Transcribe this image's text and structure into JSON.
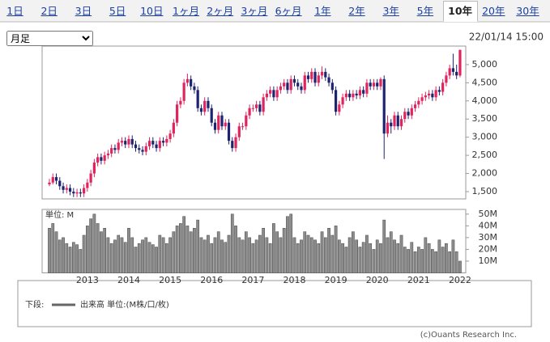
{
  "tabs": [
    "1日",
    "2日",
    "3日",
    "5日",
    "10日",
    "1ヶ月",
    "2ヶ月",
    "3ヶ月",
    "6ヶ月",
    "1年",
    "2年",
    "3年",
    "5年",
    "10年",
    "20年",
    "30年"
  ],
  "active_tab": 13,
  "interval_select": "月足",
  "timestamp": "22/01/14 15:00",
  "chart_data": [
    {
      "type": "candlestick",
      "up_color": "#e0245e",
      "down_color": "#1c2470",
      "grid": false,
      "open": [
        1700,
        1750,
        1900,
        1800,
        1650,
        1550,
        1600,
        1500,
        1450,
        1480,
        1450,
        1600,
        1750,
        2000,
        2300,
        2450,
        2350,
        2500,
        2550,
        2700,
        2650,
        2850,
        2900,
        2800,
        2950,
        2800,
        2700,
        2650,
        2600,
        2750,
        2900,
        2800,
        2700,
        2900,
        2850,
        2950,
        3100,
        3400,
        3900,
        4000,
        4500,
        4600,
        4400,
        4300,
        3800,
        3700,
        4000,
        3800,
        3400,
        3200,
        3600,
        3300,
        3400,
        2900,
        2700,
        3000,
        3300,
        3300,
        3600,
        3800,
        3800,
        3900,
        3700,
        4100,
        4200,
        4300,
        4100,
        4300,
        4400,
        4500,
        4300,
        4600,
        4500,
        4400,
        4300,
        4700,
        4600,
        4800,
        4500,
        4700,
        4800,
        4650,
        4500,
        4300,
        3700,
        3900,
        4100,
        4200,
        4100,
        4200,
        4150,
        4300,
        4200,
        4500,
        4400,
        4500,
        4400,
        4600,
        3100,
        3400,
        3300,
        3600,
        3300,
        3500,
        3700,
        3600,
        3800,
        3900,
        4000,
        4100,
        4150,
        4200,
        4100,
        4300,
        4250,
        4500,
        4700,
        4900,
        4800,
        4700
      ],
      "high": [
        1850,
        2000,
        2000,
        1900,
        1750,
        1700,
        1700,
        1600,
        1580,
        1580,
        1700,
        1850,
        2100,
        2400,
        2550,
        2550,
        2600,
        2650,
        2800,
        2800,
        2950,
        3000,
        3000,
        3050,
        3050,
        2900,
        2800,
        2750,
        2850,
        3000,
        3000,
        2900,
        3000,
        3000,
        3050,
        3200,
        3500,
        4000,
        4100,
        4600,
        4750,
        4700,
        4500,
        4400,
        3900,
        4100,
        4100,
        3900,
        3500,
        3700,
        3700,
        3500,
        3500,
        3000,
        3100,
        3400,
        3400,
        3700,
        3900,
        3900,
        4000,
        4000,
        4200,
        4300,
        4400,
        4400,
        4400,
        4500,
        4600,
        4600,
        4700,
        4700,
        4600,
        4500,
        4800,
        4800,
        4900,
        4900,
        4800,
        4950,
        4900,
        4750,
        4600,
        4400,
        4000,
        4200,
        4300,
        4300,
        4300,
        4300,
        4400,
        4400,
        4600,
        4600,
        4600,
        4600,
        4650,
        4700,
        3600,
        3500,
        3700,
        3700,
        3600,
        3800,
        3800,
        3900,
        4000,
        4100,
        4200,
        4250,
        4300,
        4300,
        4400,
        4400,
        4600,
        4800,
        5000,
        5300,
        5000,
        5420
      ],
      "low": [
        1650,
        1700,
        1700,
        1550,
        1450,
        1450,
        1400,
        1350,
        1350,
        1350,
        1350,
        1500,
        1650,
        1900,
        2200,
        2250,
        2250,
        2400,
        2450,
        2550,
        2550,
        2750,
        2700,
        2700,
        2700,
        2600,
        2550,
        2500,
        2500,
        2650,
        2700,
        2600,
        2600,
        2750,
        2750,
        2850,
        3000,
        3300,
        3800,
        3900,
        4400,
        4300,
        4200,
        3700,
        3600,
        3600,
        3700,
        3300,
        3100,
        3100,
        3200,
        3200,
        2800,
        2600,
        2600,
        2900,
        3200,
        3200,
        3500,
        3700,
        3700,
        3600,
        3600,
        4000,
        4100,
        4000,
        4000,
        4200,
        4300,
        4200,
        4200,
        4400,
        4300,
        4200,
        4200,
        4500,
        4500,
        4400,
        4400,
        4600,
        4550,
        4400,
        4200,
        3600,
        3600,
        3800,
        4000,
        4000,
        4000,
        4050,
        4050,
        4100,
        4100,
        4300,
        4300,
        4300,
        4300,
        2400,
        3000,
        3100,
        3200,
        3200,
        3200,
        3400,
        3500,
        3500,
        3700,
        3800,
        3900,
        4000,
        4050,
        4000,
        4000,
        4150,
        4150,
        4400,
        4600,
        4700,
        4600,
        4650
      ],
      "close": [
        1750,
        1900,
        1800,
        1650,
        1550,
        1600,
        1500,
        1450,
        1480,
        1450,
        1600,
        1750,
        2000,
        2300,
        2450,
        2350,
        2500,
        2550,
        2700,
        2650,
        2850,
        2900,
        2800,
        2950,
        2800,
        2700,
        2650,
        2600,
        2750,
        2900,
        2800,
        2700,
        2900,
        2850,
        2950,
        3100,
        3400,
        3900,
        4000,
        4500,
        4600,
        4400,
        4300,
        3800,
        3700,
        4000,
        3800,
        3400,
        3200,
        3600,
        3300,
        3400,
        2900,
        2700,
        3000,
        3300,
        3300,
        3600,
        3800,
        3800,
        3900,
        3700,
        4100,
        4200,
        4300,
        4100,
        4300,
        4400,
        4500,
        4300,
        4600,
        4500,
        4400,
        4300,
        4700,
        4600,
        4800,
        4500,
        4700,
        4800,
        4650,
        4500,
        4300,
        3700,
        3900,
        4100,
        4200,
        4100,
        4200,
        4150,
        4300,
        4200,
        4500,
        4400,
        4500,
        4400,
        4600,
        3100,
        3400,
        3300,
        3600,
        3300,
        3500,
        3700,
        3600,
        3800,
        3900,
        4000,
        4100,
        4150,
        4200,
        4100,
        4300,
        4250,
        4500,
        4700,
        4900,
        4800,
        4700,
        5400
      ],
      "ylim": [
        1300,
        5510
      ],
      "yticks": [
        {
          "value": 1500,
          "label": "1,500"
        },
        {
          "value": 2000,
          "label": "2,000"
        },
        {
          "value": 2500,
          "label": "2,500"
        },
        {
          "value": 3000,
          "label": "3,000"
        },
        {
          "value": 3500,
          "label": "3,500"
        },
        {
          "value": 4000,
          "label": "4,000"
        },
        {
          "value": 4500,
          "label": "4,500"
        },
        {
          "value": 5000,
          "label": "5,000"
        }
      ]
    },
    {
      "type": "bar",
      "label": "単位: M",
      "color": "#8c8c8c",
      "grid": false,
      "categories": [
        null,
        null,
        null,
        null,
        null,
        null,
        null,
        null,
        null,
        null,
        null,
        "2013",
        null,
        null,
        null,
        null,
        null,
        null,
        null,
        null,
        null,
        null,
        null,
        "2014",
        null,
        null,
        null,
        null,
        null,
        null,
        null,
        null,
        null,
        null,
        null,
        "2015",
        null,
        null,
        null,
        null,
        null,
        null,
        null,
        null,
        null,
        null,
        null,
        "2016",
        null,
        null,
        null,
        null,
        null,
        null,
        null,
        null,
        null,
        null,
        null,
        "2017",
        null,
        null,
        null,
        null,
        null,
        null,
        null,
        null,
        null,
        null,
        null,
        "2018",
        null,
        null,
        null,
        null,
        null,
        null,
        null,
        null,
        null,
        null,
        null,
        "2019",
        null,
        null,
        null,
        null,
        null,
        null,
        null,
        null,
        null,
        null,
        null,
        "2020",
        null,
        null,
        null,
        null,
        null,
        null,
        null,
        null,
        null,
        null,
        null,
        "2021",
        null,
        null,
        null,
        null,
        null,
        null,
        null,
        null,
        null,
        null,
        null,
        "2022"
      ],
      "values": [
        38,
        42,
        35,
        28,
        30,
        25,
        22,
        26,
        24,
        20,
        32,
        40,
        46,
        50,
        42,
        35,
        38,
        30,
        25,
        28,
        32,
        30,
        26,
        38,
        30,
        22,
        25,
        28,
        30,
        26,
        24,
        22,
        32,
        30,
        25,
        30,
        35,
        40,
        42,
        48,
        40,
        35,
        38,
        45,
        30,
        28,
        32,
        25,
        30,
        35,
        28,
        26,
        32,
        50,
        40,
        30,
        28,
        35,
        30,
        25,
        28,
        32,
        38,
        30,
        25,
        42,
        35,
        30,
        38,
        48,
        50,
        30,
        25,
        28,
        35,
        32,
        30,
        28,
        25,
        35,
        30,
        38,
        32,
        40,
        28,
        25,
        22,
        30,
        35,
        28,
        22,
        26,
        32,
        25,
        20,
        28,
        25,
        45,
        30,
        35,
        28,
        25,
        32,
        22,
        20,
        26,
        18,
        22,
        20,
        30,
        25,
        20,
        18,
        28,
        22,
        25,
        18,
        28,
        18,
        10
      ],
      "ylim": [
        0,
        54
      ],
      "yticks": [
        {
          "value": 10,
          "label": "10M"
        },
        {
          "value": 20,
          "label": "20M"
        },
        {
          "value": 30,
          "label": "30M"
        },
        {
          "value": 40,
          "label": "40M"
        },
        {
          "value": 50,
          "label": "50M"
        }
      ]
    }
  ],
  "legend": {
    "prefix": "下段:",
    "label": "出来高 単位:(M株/口/枚)"
  },
  "copyright": "(c)Ouants Research Inc."
}
